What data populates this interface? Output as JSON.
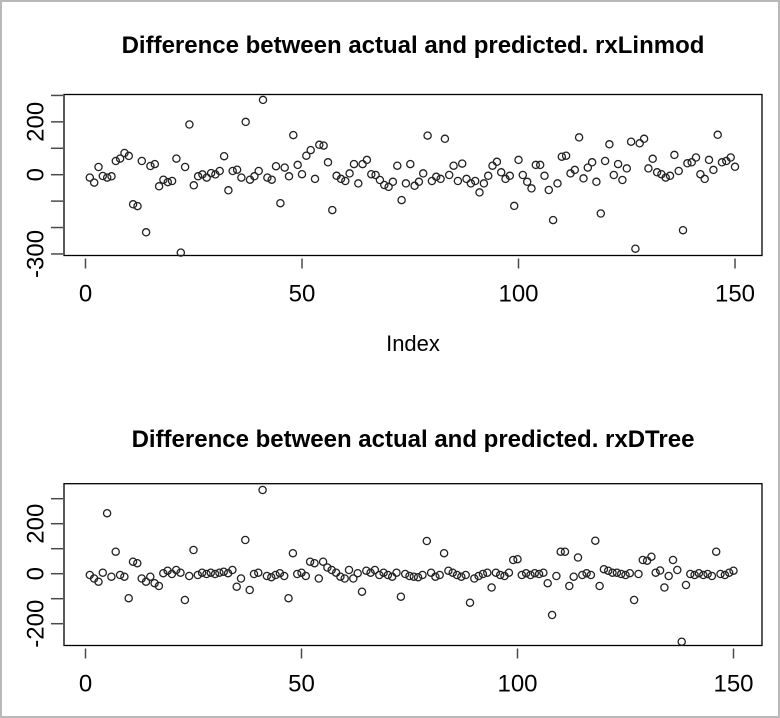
{
  "window": {
    "background": "#ffffff",
    "border_color": "#b9b9b9",
    "point_outline_color": "#222222"
  },
  "chart_data": [
    {
      "type": "scatter",
      "title": "Difference between actual and predicted. rxLinmod",
      "xlabel": "Index",
      "ylabel": "",
      "marker": "open-circle",
      "grid": false,
      "x": "index 1..150",
      "xlim": [
        -5,
        156
      ],
      "ylim": [
        -306,
        304
      ],
      "x_ticks": [
        0,
        50,
        100,
        150
      ],
      "x_tick_labels": [
        "0",
        "50",
        "100",
        "150"
      ],
      "y_ticks": [
        300,
        200,
        100,
        0,
        -100,
        -200,
        -300
      ],
      "y_tick_labels": [
        "",
        "200",
        "",
        "0",
        "",
        "",
        "-300"
      ],
      "values": [
        -11,
        -30,
        29,
        -5,
        -11,
        -6,
        52,
        61,
        82,
        71,
        -112,
        -119,
        52,
        -218,
        33,
        40,
        -44,
        -19,
        -28,
        -24,
        61,
        -295,
        29,
        190,
        -40,
        -6,
        1,
        -11,
        6,
        1,
        14,
        70,
        -59,
        14,
        19,
        -11,
        200,
        -19,
        -6,
        14,
        283,
        -11,
        -19,
        32,
        -108,
        27,
        -6,
        150,
        37,
        2,
        72,
        93,
        -16,
        113,
        110,
        47,
        -134,
        -4,
        -16,
        -24,
        5,
        40,
        -33,
        40,
        56,
        2,
        -1,
        -20,
        -39,
        -46,
        -27,
        34,
        -96,
        -33,
        40,
        -42,
        -27,
        5,
        148,
        -24,
        -8,
        -16,
        136,
        -1,
        34,
        -24,
        42,
        -16,
        -33,
        -24,
        -67,
        -33,
        -4,
        34,
        49,
        9,
        -16,
        -4,
        -118,
        56,
        -1,
        -27,
        -52,
        37,
        37,
        -4,
        -58,
        -172,
        -33,
        68,
        72,
        5,
        18,
        141,
        -14,
        27,
        47,
        -27,
        -147,
        52,
        115,
        -1,
        40,
        -20,
        24,
        125,
        -280,
        119,
        136,
        24,
        60,
        9,
        2,
        -11,
        -4,
        75,
        14,
        -210,
        43,
        47,
        65,
        2,
        -16,
        56,
        18,
        151,
        47,
        52,
        65,
        30
      ]
    },
    {
      "type": "scatter",
      "title": "Difference between actual and predicted. rxDTree",
      "xlabel": "",
      "ylabel": "",
      "marker": "open-circle",
      "grid": false,
      "x": "index 1..150",
      "xlim": [
        -5,
        156
      ],
      "ylim": [
        -277,
        360
      ],
      "x_ticks": [
        0,
        50,
        100,
        150
      ],
      "x_tick_labels": [
        "0",
        "50",
        "100",
        "150"
      ],
      "y_ticks": [
        300,
        200,
        100,
        0,
        -100,
        -200
      ],
      "y_tick_labels": [
        "",
        "200",
        "",
        "0",
        "",
        "-200"
      ],
      "values": [
        -5,
        -19,
        -32,
        4,
        242,
        -12,
        88,
        -5,
        -12,
        -98,
        48,
        42,
        -19,
        -32,
        -12,
        -38,
        -49,
        2,
        12,
        -1,
        15,
        4,
        -105,
        -9,
        95,
        -5,
        4,
        -1,
        4,
        -1,
        4,
        8,
        2,
        15,
        -52,
        -19,
        135,
        -65,
        -1,
        4,
        335,
        -9,
        -14,
        -5,
        2,
        -9,
        -98,
        82,
        -1,
        4,
        -9,
        48,
        42,
        -19,
        48,
        25,
        15,
        4,
        -12,
        -19,
        15,
        -19,
        2,
        -72,
        12,
        4,
        15,
        -5,
        4,
        -5,
        -12,
        4,
        -92,
        -1,
        -9,
        -12,
        -14,
        -5,
        131,
        4,
        -12,
        -5,
        82,
        12,
        4,
        -5,
        -12,
        -5,
        -116,
        -19,
        -9,
        -1,
        4,
        -55,
        4,
        -5,
        -9,
        4,
        55,
        58,
        -5,
        2,
        -5,
        2,
        -1,
        4,
        -38,
        -165,
        -9,
        88,
        88,
        -49,
        -12,
        65,
        -5,
        2,
        -5,
        132,
        -49,
        18,
        12,
        4,
        4,
        -1,
        -5,
        2,
        -105,
        -1,
        55,
        52,
        68,
        4,
        13,
        -55,
        -9,
        55,
        15,
        -272,
        -45,
        -1,
        -5,
        2,
        -5,
        -1,
        -9,
        88,
        -1,
        -5,
        4,
        12
      ]
    }
  ]
}
